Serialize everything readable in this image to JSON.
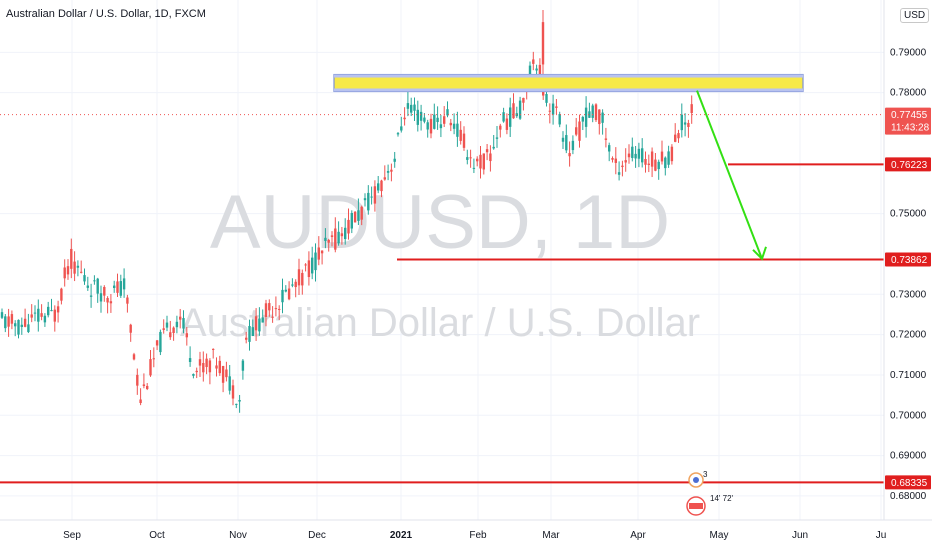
{
  "header": {
    "title": "Australian Dollar / U.S. Dollar, 1D, FXCM",
    "currency": "USD"
  },
  "watermark": {
    "symbol": "AUDUSD, 1D",
    "name": "Australian Dollar / U.S. Dollar"
  },
  "chart_data": {
    "type": "candlestick",
    "price_axis": {
      "ticks": [
        "0.79000",
        "0.78000",
        "0.75000",
        "0.73000",
        "0.72000",
        "0.71000",
        "0.70000",
        "0.69000",
        "0.68000"
      ],
      "range": [
        0.6775,
        0.801
      ]
    },
    "time_axis": {
      "ticks": [
        "Sep",
        "Oct",
        "Nov",
        "Dec",
        "2021",
        "Feb",
        "Mar",
        "Apr",
        "May",
        "Jun",
        "Ju"
      ]
    },
    "last_price": {
      "value": "0.77455",
      "countdown": "11:43:28"
    },
    "horizontal_levels": [
      {
        "value": 0.76223,
        "label": "0.76223"
      },
      {
        "value": 0.73862,
        "label": "0.73862"
      },
      {
        "value": 0.68335,
        "label": "0.68335"
      }
    ],
    "resistance_zone": {
      "from": 0.7803,
      "to": 0.7845
    },
    "projection_arrow": {
      "from_value": 0.7805,
      "to_value": 0.7388
    },
    "event_icons": [
      {
        "label": "3"
      },
      {
        "label": "14' 72'"
      }
    ],
    "colors": {
      "up": "#26a69a",
      "down": "#ef5350",
      "level_line": "#e01e1e",
      "zone_fill": "#f7e948",
      "zone_border": "#7d8fd6",
      "arrow": "#33e013",
      "last_price": "#ef5350",
      "grid": "#f0f3fa"
    }
  }
}
